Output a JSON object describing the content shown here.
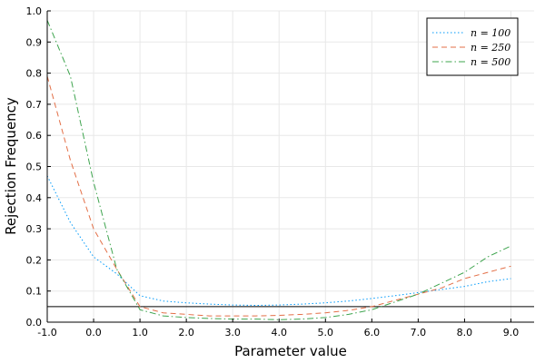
{
  "chart_data": {
    "type": "line",
    "xlabel": "Parameter value",
    "ylabel": "Rejection Frequency",
    "xlim": [
      -1.0,
      9.5
    ],
    "ylim": [
      0.0,
      1.0
    ],
    "xticks": [
      -1.0,
      0.0,
      1.0,
      2.0,
      3.0,
      4.0,
      5.0,
      6.0,
      7.0,
      8.0,
      9.0
    ],
    "xtick_labels": [
      "-1.0",
      "0.0",
      "1.0",
      "2.0",
      "3.0",
      "4.0",
      "5.0",
      "6.0",
      "7.0",
      "8.0",
      "9.0"
    ],
    "yticks": [
      0.0,
      0.1,
      0.2,
      0.3,
      0.4,
      0.5,
      0.6,
      0.7,
      0.8,
      0.9,
      1.0
    ],
    "ytick_labels": [
      "0.0",
      "0.1",
      "0.2",
      "0.3",
      "0.4",
      "0.5",
      "0.6",
      "0.7",
      "0.8",
      "0.9",
      "1.0"
    ],
    "grid": true,
    "legend_position": "top-right",
    "x": [
      -1.0,
      -0.5,
      0.0,
      0.5,
      1.0,
      1.5,
      2.0,
      2.5,
      3.0,
      3.5,
      4.0,
      4.5,
      5.0,
      5.5,
      6.0,
      6.5,
      7.0,
      7.5,
      8.0,
      8.5,
      9.0
    ],
    "series": [
      {
        "name": "n = 100",
        "color": "#009AFA",
        "style": "dotted",
        "values": [
          0.47,
          0.32,
          0.21,
          0.155,
          0.085,
          0.068,
          0.062,
          0.058,
          0.055,
          0.054,
          0.055,
          0.058,
          0.062,
          0.068,
          0.076,
          0.085,
          0.095,
          0.105,
          0.115,
          0.13,
          0.14
        ]
      },
      {
        "name": "n = 250",
        "color": "#E36F47",
        "style": "dashed",
        "values": [
          0.79,
          0.52,
          0.3,
          0.17,
          0.05,
          0.03,
          0.025,
          0.02,
          0.02,
          0.02,
          0.022,
          0.025,
          0.03,
          0.038,
          0.05,
          0.07,
          0.09,
          0.11,
          0.14,
          0.16,
          0.18
        ]
      },
      {
        "name": "n = 500",
        "color": "#3EA44E",
        "style": "dashdot",
        "values": [
          0.97,
          0.79,
          0.45,
          0.17,
          0.04,
          0.02,
          0.015,
          0.012,
          0.01,
          0.01,
          0.008,
          0.01,
          0.015,
          0.025,
          0.04,
          0.065,
          0.09,
          0.125,
          0.16,
          0.21,
          0.245
        ]
      }
    ],
    "reference_line": {
      "y": 0.05,
      "color": "#000000"
    }
  }
}
